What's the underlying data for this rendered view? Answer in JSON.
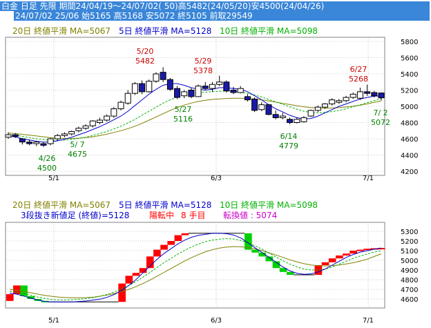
{
  "header": {
    "line1": "白金 日足 先限 期間24/04/19～24/07/02( 50)高5482(24/05/20)安4500(24/04/26)",
    "line2": "24/07/02 25/06 始5165 高5168 安5072 終5105 前取29549"
  },
  "colors": {
    "header_bg": "#3a86d8",
    "up": "#ffffff",
    "down": "#1a1aa8",
    "ma5": "#0000cc",
    "ma10": "#00b000",
    "ma20": "#808000",
    "renko_up": "#ff0000",
    "renko_down": "#00d000",
    "annotation_high": "#cc0000",
    "annotation_low": "#008000",
    "renko_status": "#ff0000",
    "renko_convert": "#cc00cc"
  },
  "chart_data": [
    {
      "type": "candlestick",
      "legend": {
        "ma20": "20日 終値平滑 MA=5067",
        "ma5": "5日 終値平滑 MA=5128",
        "ma10": "10日 終値平滑 MA=5098"
      },
      "ylim": [
        4200,
        5800
      ],
      "yticks": [
        4200,
        4400,
        4600,
        4800,
        5000,
        5200,
        5400,
        5600,
        5800
      ],
      "xtick_labels": [
        "5/1",
        "6/3",
        "7/1"
      ],
      "grid": true,
      "candles": [
        {
          "o": 4620,
          "h": 4680,
          "l": 4600,
          "c": 4650
        },
        {
          "o": 4650,
          "h": 4670,
          "l": 4610,
          "c": 4630
        },
        {
          "o": 4600,
          "h": 4610,
          "l": 4530,
          "c": 4560
        },
        {
          "o": 4560,
          "h": 4590,
          "l": 4520,
          "c": 4540
        },
        {
          "o": 4540,
          "h": 4570,
          "l": 4510,
          "c": 4560
        },
        {
          "o": 4540,
          "h": 4560,
          "l": 4500,
          "c": 4520
        },
        {
          "o": 4540,
          "h": 4610,
          "l": 4520,
          "c": 4600
        },
        {
          "o": 4600,
          "h": 4660,
          "l": 4580,
          "c": 4640
        },
        {
          "o": 4640,
          "h": 4680,
          "l": 4620,
          "c": 4660
        },
        {
          "o": 4660,
          "h": 4700,
          "l": 4640,
          "c": 4690
        },
        {
          "o": 4700,
          "h": 4750,
          "l": 4680,
          "c": 4730
        },
        {
          "o": 4730,
          "h": 4780,
          "l": 4710,
          "c": 4760
        },
        {
          "o": 4760,
          "h": 4830,
          "l": 4740,
          "c": 4820
        },
        {
          "o": 4800,
          "h": 4860,
          "l": 4780,
          "c": 4830
        },
        {
          "o": 4830,
          "h": 4900,
          "l": 4810,
          "c": 4880
        },
        {
          "o": 4880,
          "h": 4990,
          "l": 4860,
          "c": 4970
        },
        {
          "o": 4970,
          "h": 5070,
          "l": 4950,
          "c": 5050
        },
        {
          "o": 5040,
          "h": 5200,
          "l": 5020,
          "c": 5160
        },
        {
          "o": 5160,
          "h": 5300,
          "l": 5140,
          "c": 5280
        },
        {
          "o": 5280,
          "h": 5320,
          "l": 5150,
          "c": 5180
        },
        {
          "o": 5180,
          "h": 5330,
          "l": 5170,
          "c": 5310
        },
        {
          "o": 5310,
          "h": 5420,
          "l": 5290,
          "c": 5400
        },
        {
          "o": 5420,
          "h": 5482,
          "l": 5300,
          "c": 5330
        },
        {
          "o": 5330,
          "h": 5350,
          "l": 5190,
          "c": 5210
        },
        {
          "o": 5220,
          "h": 5250,
          "l": 5090,
          "c": 5110
        },
        {
          "o": 5130,
          "h": 5200,
          "l": 5100,
          "c": 5180
        },
        {
          "o": 5200,
          "h": 5230,
          "l": 5100,
          "c": 5120
        },
        {
          "o": 5120,
          "h": 5270,
          "l": 5116,
          "c": 5250
        },
        {
          "o": 5250,
          "h": 5300,
          "l": 5200,
          "c": 5220
        },
        {
          "o": 5220,
          "h": 5300,
          "l": 5180,
          "c": 5270
        },
        {
          "o": 5270,
          "h": 5378,
          "l": 5250,
          "c": 5300
        },
        {
          "o": 5300,
          "h": 5320,
          "l": 5170,
          "c": 5190
        },
        {
          "o": 5200,
          "h": 5240,
          "l": 5150,
          "c": 5170
        },
        {
          "o": 5170,
          "h": 5250,
          "l": 5160,
          "c": 5220
        },
        {
          "o": 5120,
          "h": 5150,
          "l": 5060,
          "c": 5080
        },
        {
          "o": 5090,
          "h": 5110,
          "l": 4930,
          "c": 4950
        },
        {
          "o": 4960,
          "h": 5050,
          "l": 4940,
          "c": 5020
        },
        {
          "o": 5020,
          "h": 5030,
          "l": 4890,
          "c": 4900
        },
        {
          "o": 4900,
          "h": 4950,
          "l": 4840,
          "c": 4860
        },
        {
          "o": 4860,
          "h": 4920,
          "l": 4840,
          "c": 4880
        },
        {
          "o": 4840,
          "h": 4860,
          "l": 4779,
          "c": 4800
        },
        {
          "o": 4800,
          "h": 4860,
          "l": 4790,
          "c": 4840
        },
        {
          "o": 4810,
          "h": 4880,
          "l": 4800,
          "c": 4860
        },
        {
          "o": 4880,
          "h": 4960,
          "l": 4870,
          "c": 4950
        },
        {
          "o": 4950,
          "h": 5010,
          "l": 4930,
          "c": 4990
        },
        {
          "o": 4990,
          "h": 5040,
          "l": 4970,
          "c": 5030
        },
        {
          "o": 5030,
          "h": 5100,
          "l": 5010,
          "c": 5080
        },
        {
          "o": 5050,
          "h": 5090,
          "l": 5030,
          "c": 5070
        },
        {
          "o": 5070,
          "h": 5130,
          "l": 5050,
          "c": 5110
        },
        {
          "o": 5110,
          "h": 5170,
          "l": 5090,
          "c": 5150
        },
        {
          "o": 5100,
          "h": 5230,
          "l": 5080,
          "c": 5180
        },
        {
          "o": 5180,
          "h": 5268,
          "l": 5130,
          "c": 5160
        },
        {
          "o": 5170,
          "h": 5190,
          "l": 5110,
          "c": 5130
        },
        {
          "o": 5165,
          "h": 5168,
          "l": 5072,
          "c": 5105
        }
      ],
      "ma5": [
        4630,
        4625,
        4600,
        4585,
        4570,
        4560,
        4560,
        4575,
        4595,
        4620,
        4650,
        4680,
        4715,
        4750,
        4790,
        4835,
        4880,
        4940,
        5010,
        5080,
        5150,
        5210,
        5260,
        5280,
        5280,
        5260,
        5230,
        5210,
        5200,
        5210,
        5230,
        5230,
        5220,
        5210,
        5180,
        5130,
        5080,
        5020,
        4970,
        4930,
        4890,
        4860,
        4845,
        4850,
        4880,
        4920,
        4960,
        5000,
        5030,
        5060,
        5090,
        5110,
        5125,
        5128
      ],
      "ma10": [
        4650,
        4645,
        4630,
        4615,
        4600,
        4590,
        4580,
        4580,
        4585,
        4595,
        4605,
        4620,
        4640,
        4665,
        4690,
        4720,
        4755,
        4795,
        4840,
        4890,
        4940,
        4990,
        5040,
        5080,
        5115,
        5140,
        5160,
        5170,
        5175,
        5180,
        5185,
        5190,
        5185,
        5175,
        5160,
        5140,
        5115,
        5085,
        5055,
        5025,
        4995,
        4965,
        4940,
        4925,
        4920,
        4925,
        4935,
        4950,
        4970,
        4995,
        5020,
        5045,
        5070,
        5098
      ],
      "ma20": [
        4670,
        4665,
        4655,
        4645,
        4635,
        4625,
        4615,
        4608,
        4605,
        4605,
        4608,
        4615,
        4625,
        4640,
        4658,
        4678,
        4700,
        4725,
        4755,
        4790,
        4830,
        4870,
        4910,
        4950,
        4985,
        5015,
        5040,
        5060,
        5075,
        5085,
        5092,
        5097,
        5100,
        5100,
        5097,
        5090,
        5080,
        5067,
        5052,
        5037,
        5022,
        5008,
        4995,
        4985,
        4980,
        4978,
        4980,
        4985,
        4992,
        5002,
        5015,
        5030,
        5050,
        5067
      ],
      "annotations": [
        {
          "label": "5/20",
          "value": "5482"
        },
        {
          "label": "5/29",
          "value": "5378"
        },
        {
          "label": "6/27",
          "value": "5268"
        },
        {
          "label": "4/26",
          "value": "4500"
        },
        {
          "label": "5/ 7",
          "value": "4675"
        },
        {
          "label": "5/27",
          "value": "5116"
        },
        {
          "label": "6/14",
          "value": "4779"
        },
        {
          "label": "7/ 2",
          "value": "5072"
        }
      ]
    },
    {
      "type": "renko",
      "legend": {
        "ma20": "20日 終値平滑 MA=5067",
        "ma5": "5日 終値平滑 MA=5128",
        "ma10": "10日 終値平滑 MA=5098"
      },
      "subtitle": "3段抜き新値足 (終値)=5128",
      "status": "陽転中",
      "step": "8 手目",
      "convert": "転換値 : 5074",
      "ylim": [
        4550,
        5350
      ],
      "yticks": [
        4600,
        4700,
        4800,
        4900,
        5000,
        5100,
        5200,
        5300
      ],
      "xtick_labels": [
        "5/1",
        "6/3",
        "7/1"
      ],
      "grid": true,
      "bricks": [
        {
          "o": 4580,
          "c": 4650
        },
        {
          "o": 4650,
          "c": 4740
        },
        {
          "o": 4740,
          "c": 4630
        },
        {
          "o": 4630,
          "c": 4600
        },
        {
          "o": 4600,
          "c": 4580
        },
        {
          "o": 4580,
          "c": 4570
        },
        {
          "o": 4570,
          "c": 4570
        },
        {
          "o": 4570,
          "c": 4570
        },
        {
          "o": 4570,
          "c": 4570
        },
        {
          "o": 4570,
          "c": 4570
        },
        {
          "o": 4570,
          "c": 4570
        },
        {
          "o": 4570,
          "c": 4570
        },
        {
          "o": 4570,
          "c": 4570
        },
        {
          "o": 4570,
          "c": 4570
        },
        {
          "o": 4570,
          "c": 4570
        },
        {
          "o": 4570,
          "c": 4570
        },
        {
          "o": 4570,
          "c": 4760
        },
        {
          "o": 4760,
          "c": 4840
        },
        {
          "o": 4840,
          "c": 4870
        },
        {
          "o": 4870,
          "c": 4920
        },
        {
          "o": 4920,
          "c": 5040
        },
        {
          "o": 5040,
          "c": 5110
        },
        {
          "o": 5110,
          "c": 5160
        },
        {
          "o": 5160,
          "c": 5200
        },
        {
          "o": 5200,
          "c": 5260
        },
        {
          "o": 5260,
          "c": 5280
        },
        {
          "o": 5280,
          "c": 5280
        },
        {
          "o": 5280,
          "c": 5280
        },
        {
          "o": 5280,
          "c": 5280
        },
        {
          "o": 5280,
          "c": 5280
        },
        {
          "o": 5280,
          "c": 5280
        },
        {
          "o": 5280,
          "c": 5280
        },
        {
          "o": 5280,
          "c": 5280
        },
        {
          "o": 5280,
          "c": 5280
        },
        {
          "o": 5280,
          "c": 5110
        },
        {
          "o": 5110,
          "c": 5080
        },
        {
          "o": 5080,
          "c": 5040
        },
        {
          "o": 5040,
          "c": 4990
        },
        {
          "o": 4990,
          "c": 4920
        },
        {
          "o": 4920,
          "c": 4880
        },
        {
          "o": 4880,
          "c": 4850
        },
        {
          "o": 4850,
          "c": 4850
        },
        {
          "o": 4850,
          "c": 4850
        },
        {
          "o": 4850,
          "c": 4850
        },
        {
          "o": 4850,
          "c": 4950
        },
        {
          "o": 4950,
          "c": 4980
        },
        {
          "o": 4980,
          "c": 5020
        },
        {
          "o": 5020,
          "c": 5050
        },
        {
          "o": 5050,
          "c": 5070
        },
        {
          "o": 5070,
          "c": 5100
        },
        {
          "o": 5100,
          "c": 5110
        },
        {
          "o": 5110,
          "c": 5120
        },
        {
          "o": 5120,
          "c": 5125
        },
        {
          "o": 5125,
          "c": 5128
        }
      ],
      "ma5": [
        4660,
        4650,
        4630,
        4610,
        4590,
        4575,
        4570,
        4570,
        4570,
        4570,
        4575,
        4580,
        4590,
        4600,
        4620,
        4650,
        4690,
        4740,
        4800,
        4870,
        4940,
        5010,
        5070,
        5120,
        5170,
        5210,
        5240,
        5260,
        5270,
        5280,
        5280,
        5275,
        5260,
        5230,
        5180,
        5130,
        5080,
        5030,
        4980,
        4930,
        4890,
        4865,
        4855,
        4860,
        4880,
        4910,
        4950,
        4990,
        5030,
        5060,
        5085,
        5100,
        5115,
        5128
      ],
      "ma10": [
        4680,
        4670,
        4655,
        4640,
        4620,
        4605,
        4595,
        4590,
        4590,
        4592,
        4598,
        4605,
        4615,
        4630,
        4650,
        4675,
        4705,
        4740,
        4780,
        4825,
        4875,
        4925,
        4975,
        5020,
        5065,
        5105,
        5140,
        5170,
        5195,
        5210,
        5220,
        5225,
        5220,
        5205,
        5180,
        5150,
        5115,
        5075,
        5035,
        4995,
        4960,
        4930,
        4910,
        4900,
        4900,
        4910,
        4930,
        4960,
        4990,
        5020,
        5045,
        5065,
        5085,
        5098
      ],
      "ma20": [
        4700,
        4690,
        4678,
        4665,
        4650,
        4638,
        4628,
        4620,
        4615,
        4612,
        4612,
        4615,
        4620,
        4630,
        4642,
        4658,
        4678,
        4700,
        4728,
        4760,
        4795,
        4835,
        4875,
        4915,
        4955,
        4995,
        5030,
        5062,
        5090,
        5112,
        5128,
        5138,
        5142,
        5140,
        5132,
        5118,
        5100,
        5078,
        5055,
        5030,
        5005,
        4983,
        4965,
        4952,
        4945,
        4942,
        4945,
        4952,
        4962,
        4975,
        4992,
        5012,
        5040,
        5067
      ]
    }
  ]
}
